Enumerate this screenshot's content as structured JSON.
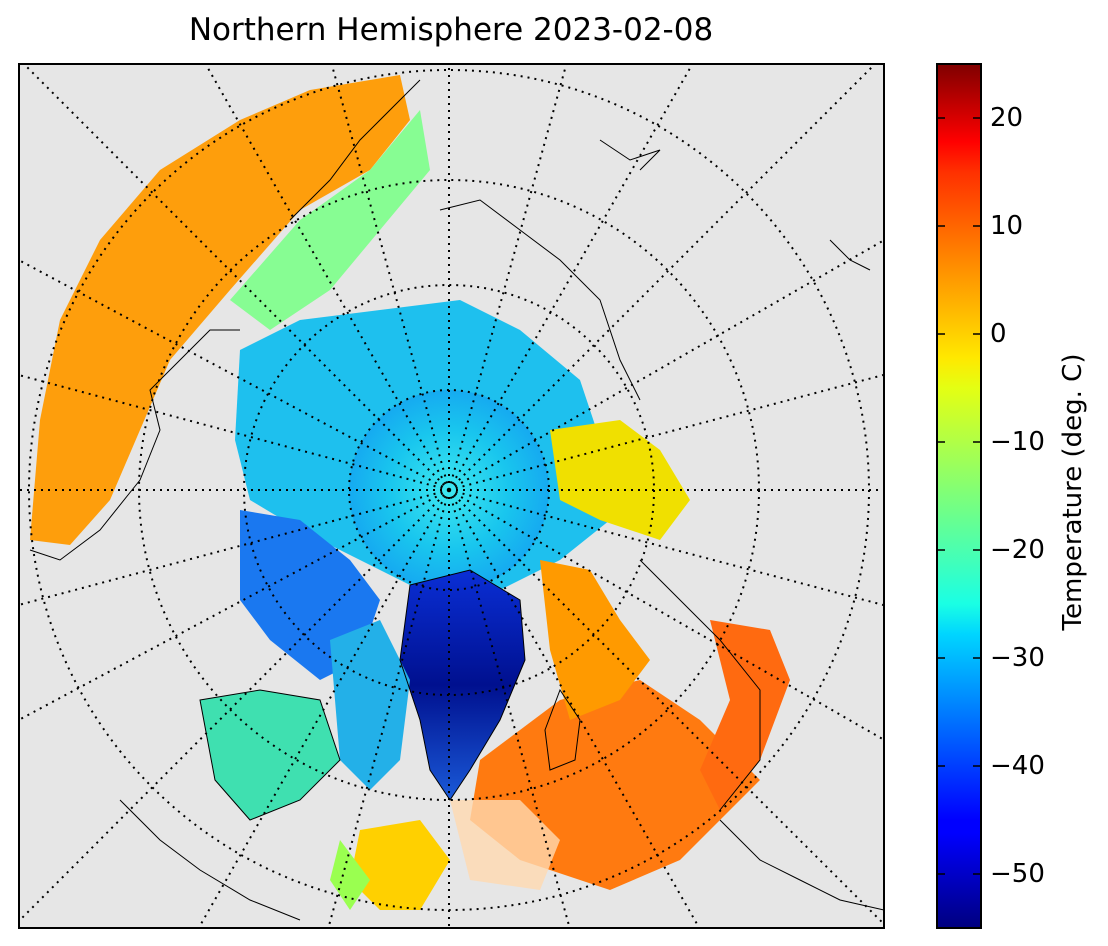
{
  "title": "Northern Hemisphere 2023-02-08",
  "colors": {
    "land_background": "#e6e6e6",
    "coastline": "#000000",
    "graticule": "#000000"
  },
  "map": {
    "projection": "north-polar-stereographic",
    "variable": "surface-temperature"
  },
  "colorbar": {
    "label": "Temperature (deg. C)",
    "colormap": "jet",
    "range": [
      -55,
      25
    ],
    "ticks": [
      {
        "value": 20,
        "label": "20"
      },
      {
        "value": 10,
        "label": "10"
      },
      {
        "value": 0,
        "label": "0"
      },
      {
        "value": -10,
        "label": "−10"
      },
      {
        "value": -20,
        "label": "−20"
      },
      {
        "value": -30,
        "label": "−30"
      },
      {
        "value": -40,
        "label": "−40"
      },
      {
        "value": -50,
        "label": "−50"
      }
    ]
  }
}
